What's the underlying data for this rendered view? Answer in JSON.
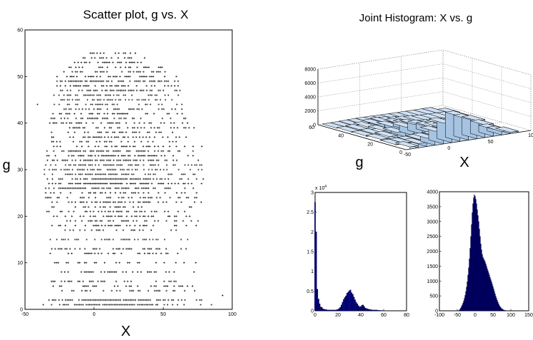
{
  "chart_data": [
    {
      "type": "scatter",
      "title": "Scatter plot, g vs. X",
      "xlabel": "X",
      "ylabel": "g",
      "xlim": [
        -50,
        100
      ],
      "ylim": [
        0,
        60
      ],
      "xticks": [
        "-50",
        "0",
        "50",
        "100"
      ],
      "yticks": [
        "0",
        "10",
        "20",
        "30",
        "40",
        "50",
        "60"
      ],
      "marker": "+",
      "marker_color": "#000000",
      "g_levels": [
        1,
        2,
        4,
        5,
        6,
        8,
        10,
        12,
        13,
        15,
        17,
        18,
        19,
        20,
        21,
        22,
        23,
        24,
        25,
        26,
        27,
        28,
        29,
        30,
        31,
        32,
        33,
        34,
        35,
        36,
        37,
        38,
        39,
        40,
        41,
        42,
        43,
        44,
        45,
        46,
        47,
        48,
        49,
        50,
        51,
        52,
        53,
        54,
        55
      ],
      "x_range_by_g": [
        {
          "g": 1,
          "xmin": -38,
          "xmax": 82
        },
        {
          "g": 2,
          "xmin": -35,
          "xmax": 80
        },
        {
          "g": 4,
          "xmin": -34,
          "xmax": 76
        },
        {
          "g": 5,
          "xmin": -32,
          "xmax": 74
        },
        {
          "g": 30,
          "xmin": -36,
          "xmax": 80
        },
        {
          "g": 50,
          "xmin": -28,
          "xmax": 64
        },
        {
          "g": 55,
          "xmin": -5,
          "xmax": 30
        }
      ]
    },
    {
      "type": "bar3d",
      "title": "Joint Histogram: X vs. g",
      "xlabel": "X",
      "ylabel": "g",
      "xlim": [
        -50,
        100
      ],
      "ylim": [
        0,
        60
      ],
      "zlim": [
        0,
        8000
      ],
      "xticks": [
        "-50",
        "0",
        "50",
        "100"
      ],
      "yticks": [
        "0",
        "20",
        "40",
        "60"
      ],
      "zticks": [
        "0",
        "2000",
        "4000",
        "6000",
        "8000"
      ],
      "bar_color": "#b9d3ee",
      "x_bins": [
        -40,
        -30,
        -20,
        -10,
        0,
        10,
        20,
        30,
        40,
        50,
        60,
        70,
        80
      ],
      "g_bins": [
        5,
        15,
        25,
        35,
        45,
        55
      ],
      "counts": [
        [
          300,
          600,
          1200,
          2000,
          3000,
          4200,
          3600,
          3000,
          2600,
          1800,
          1000,
          500,
          200
        ],
        [
          50,
          80,
          120,
          200,
          250,
          280,
          260,
          220,
          180,
          120,
          80,
          40,
          10
        ],
        [
          200,
          400,
          800,
          1400,
          1600,
          1300,
          900,
          700,
          500,
          300,
          150,
          80,
          20
        ],
        [
          100,
          200,
          500,
          900,
          1100,
          800,
          500,
          300,
          200,
          100,
          50,
          20,
          5
        ],
        [
          100,
          200,
          400,
          600,
          700,
          600,
          400,
          300,
          200,
          100,
          50,
          20,
          5
        ],
        [
          10,
          20,
          50,
          80,
          100,
          80,
          50,
          30,
          20,
          10,
          5,
          0,
          0
        ]
      ]
    },
    {
      "type": "bar",
      "title": "",
      "xlabel": "",
      "ylabel": "",
      "xlim": [
        0,
        80
      ],
      "ylim": [
        0,
        30000
      ],
      "y_exponent": "x 10",
      "y_exponent_power": "4",
      "xticks": [
        "0",
        "20",
        "40",
        "60",
        "80"
      ],
      "yticks": [
        "0",
        "0.5",
        "1",
        "1.5",
        "2",
        "2.5",
        "3"
      ],
      "x": [
        0,
        1,
        2,
        3,
        4,
        5,
        6,
        7,
        8,
        9,
        10,
        11,
        12,
        13,
        14,
        15,
        16,
        17,
        18,
        19,
        20,
        21,
        22,
        23,
        24,
        25,
        26,
        27,
        28,
        29,
        30,
        31,
        32,
        33,
        34,
        35,
        36,
        37,
        38,
        39,
        40,
        41,
        42,
        43,
        44,
        45,
        46,
        47,
        48,
        49,
        50,
        51,
        52,
        53,
        54,
        55,
        56,
        57,
        58,
        59,
        60,
        61,
        62,
        63,
        64,
        65
      ],
      "values": [
        27500,
        20000,
        5500,
        3000,
        1800,
        1000,
        900,
        500,
        400,
        300,
        300,
        200,
        200,
        200,
        200,
        200,
        200,
        200,
        200,
        300,
        300,
        600,
        900,
        1500,
        2200,
        2900,
        3400,
        3800,
        4500,
        4800,
        5100,
        5300,
        4600,
        4200,
        3500,
        2800,
        2200,
        1800,
        1300,
        1000,
        1100,
        1400,
        1500,
        1100,
        700,
        600,
        500,
        400,
        300,
        300,
        200,
        200,
        200,
        200,
        200,
        150,
        150,
        100,
        100,
        80,
        80,
        60,
        60,
        40,
        20,
        10
      ],
      "bar_color": "#000080"
    },
    {
      "type": "bar",
      "title": "",
      "xlabel": "",
      "ylabel": "",
      "xlim": [
        -100,
        150
      ],
      "ylim": [
        0,
        4000
      ],
      "xticks": [
        "-100",
        "-50",
        "0",
        "50",
        "100",
        "150"
      ],
      "yticks": [
        "0",
        "500",
        "1000",
        "1500",
        "2000",
        "2500",
        "3000",
        "3500",
        "4000"
      ],
      "x": [
        -44,
        -42,
        -40,
        -38,
        -36,
        -34,
        -32,
        -30,
        -28,
        -26,
        -24,
        -22,
        -20,
        -18,
        -16,
        -14,
        -12,
        -10,
        -8,
        -6,
        -4,
        -2,
        0,
        2,
        4,
        6,
        8,
        10,
        12,
        14,
        16,
        18,
        20,
        22,
        24,
        26,
        28,
        30,
        32,
        34,
        36,
        38,
        40,
        42,
        44,
        46,
        48,
        50,
        52,
        54,
        56,
        58,
        60,
        62,
        64,
        66,
        68,
        70,
        72,
        74,
        76,
        78,
        80,
        82,
        84,
        86,
        88,
        90,
        92
      ],
      "values": [
        30,
        60,
        100,
        150,
        200,
        260,
        330,
        420,
        520,
        650,
        800,
        980,
        1200,
        1450,
        1750,
        2100,
        2500,
        2900,
        3300,
        3600,
        3800,
        3900,
        3850,
        3750,
        3600,
        3400,
        3200,
        3000,
        2750,
        2500,
        2250,
        2050,
        1900,
        1800,
        1750,
        1700,
        1650,
        1580,
        1500,
        1420,
        1350,
        1280,
        1200,
        1120,
        1050,
        980,
        900,
        820,
        740,
        650,
        570,
        490,
        420,
        350,
        290,
        230,
        180,
        140,
        110,
        80,
        60,
        45,
        30,
        20,
        15,
        10,
        6,
        4,
        2
      ],
      "bar_color": "#000080"
    }
  ]
}
